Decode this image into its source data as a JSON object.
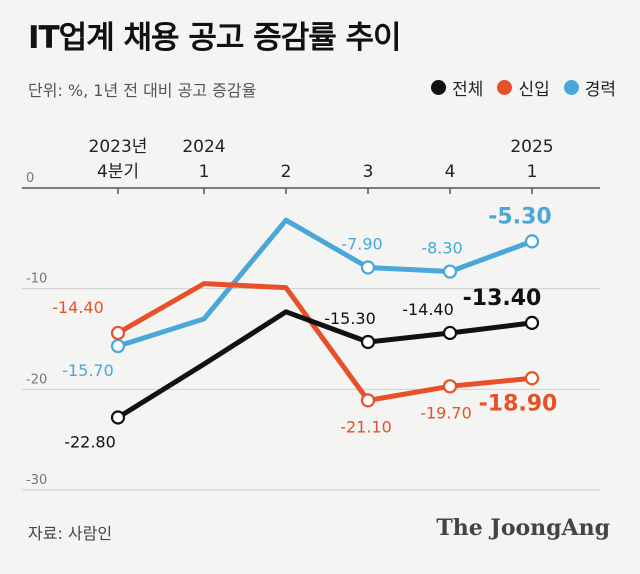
{
  "header": {
    "title": "IT업계 채용 공고 증감률 추이",
    "unit": "단위: %, 1년 전 대비 공고 증감율"
  },
  "legend": [
    {
      "label": "전체",
      "color": "#111111"
    },
    {
      "label": "신입",
      "color": "#e8502a"
    },
    {
      "label": "경력",
      "color": "#4aa8d8"
    }
  ],
  "footer": {
    "source": "자료: 사람인",
    "brand": "The JoongAng"
  },
  "chart_data": {
    "type": "line",
    "categories": [
      {
        "top": "2023년",
        "bottom": "4분기"
      },
      {
        "top": "2024",
        "bottom": "1"
      },
      {
        "top": "",
        "bottom": "2"
      },
      {
        "top": "",
        "bottom": "3"
      },
      {
        "top": "",
        "bottom": "4"
      },
      {
        "top": "2025",
        "bottom": "1"
      }
    ],
    "ylim": [
      -30,
      0
    ],
    "yticks": [
      0,
      -10,
      -20,
      -30
    ],
    "ytick_labels": [
      "0",
      "-10",
      "-20",
      "-30"
    ],
    "grid": true,
    "series": [
      {
        "name": "경력",
        "color": "#4aa8d8",
        "values": [
          -15.7,
          -13.0,
          -3.2,
          -7.9,
          -8.3,
          -5.3
        ],
        "labels": [
          "-15.70",
          null,
          null,
          "-7.90",
          "-8.30",
          "-5.30"
        ],
        "markers": [
          true,
          false,
          false,
          true,
          true,
          true
        ]
      },
      {
        "name": "신입",
        "color": "#e8502a",
        "values": [
          -14.4,
          -9.5,
          -9.9,
          -21.1,
          -19.7,
          -18.9
        ],
        "labels": [
          "-14.40",
          null,
          null,
          "-21.10",
          "-19.70",
          "-18.90"
        ],
        "markers": [
          true,
          false,
          false,
          true,
          true,
          true
        ]
      },
      {
        "name": "전체",
        "color": "#111111",
        "values": [
          -22.8,
          -17.5,
          -12.3,
          -15.3,
          -14.4,
          -13.4
        ],
        "labels": [
          "-22.80",
          null,
          null,
          "-15.30",
          "-14.40",
          "-13.40"
        ],
        "markers": [
          true,
          false,
          false,
          true,
          true,
          true
        ]
      }
    ]
  }
}
